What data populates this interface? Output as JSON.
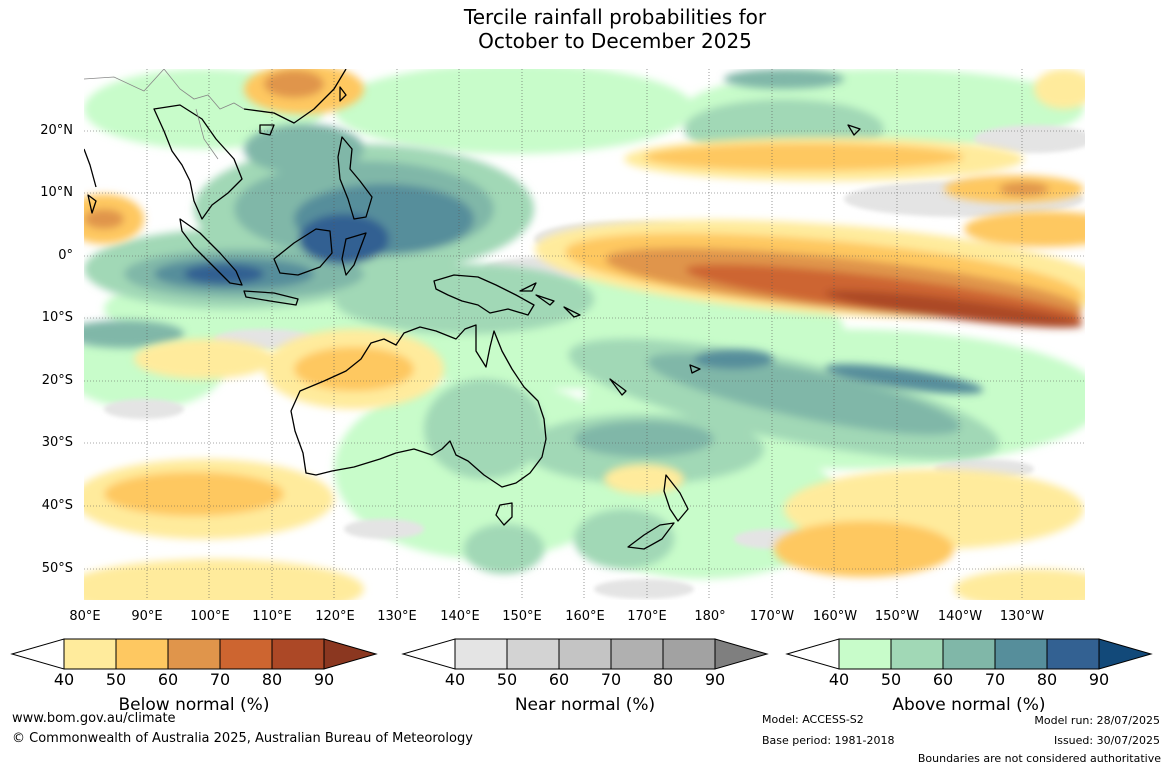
{
  "title": {
    "line1": "Tercile rainfall probabilities for",
    "line2": "October to December 2025"
  },
  "map": {
    "region": "Australia and surrounding Indian and Pacific Oceans",
    "lat_labels": [
      "20°N",
      "10°N",
      "0°",
      "10°S",
      "20°S",
      "30°S",
      "40°S",
      "50°S"
    ],
    "lon_labels": [
      "80°E",
      "90°E",
      "100°E",
      "110°E",
      "120°E",
      "130°E",
      "140°E",
      "150°E",
      "160°E",
      "170°E",
      "180°",
      "170°W",
      "160°W",
      "150°W",
      "140°W",
      "130°W"
    ],
    "gridlines": true
  },
  "colorbars": [
    {
      "name": "below",
      "title": "Below normal (%)",
      "ticks": [
        "40",
        "50",
        "60",
        "70",
        "80",
        "90"
      ],
      "colors": [
        "#ffeb9c",
        "#fec861",
        "#e0954b",
        "#cd6530",
        "#ac4826",
        "#8b3720"
      ]
    },
    {
      "name": "near",
      "title": "Near normal (%)",
      "ticks": [
        "40",
        "50",
        "60",
        "70",
        "80",
        "90"
      ],
      "colors": [
        "#e4e4e4",
        "#d3d3d3",
        "#c4c4c4",
        "#b0b0b0",
        "#a2a2a2",
        "#7f7f7f"
      ]
    },
    {
      "name": "above",
      "title": "Above normal (%)",
      "ticks": [
        "40",
        "50",
        "60",
        "70",
        "80",
        "90"
      ],
      "colors": [
        "#c8fcca",
        "#a1d8b6",
        "#80b7a8",
        "#568e9b",
        "#336192",
        "#124979"
      ]
    }
  ],
  "footer": {
    "website": "www.bom.gov.au/climate",
    "copyright": "© Commonwealth of Australia 2025, Australian Bureau of Meteorology",
    "model": "Model: ACCESS-S2",
    "base_period": "Base period: 1981-2018",
    "model_run": "Model run: 28/07/2025",
    "issued": "Issued: 30/07/2025",
    "disclaimer": "Boundaries are not considered authoritative"
  }
}
